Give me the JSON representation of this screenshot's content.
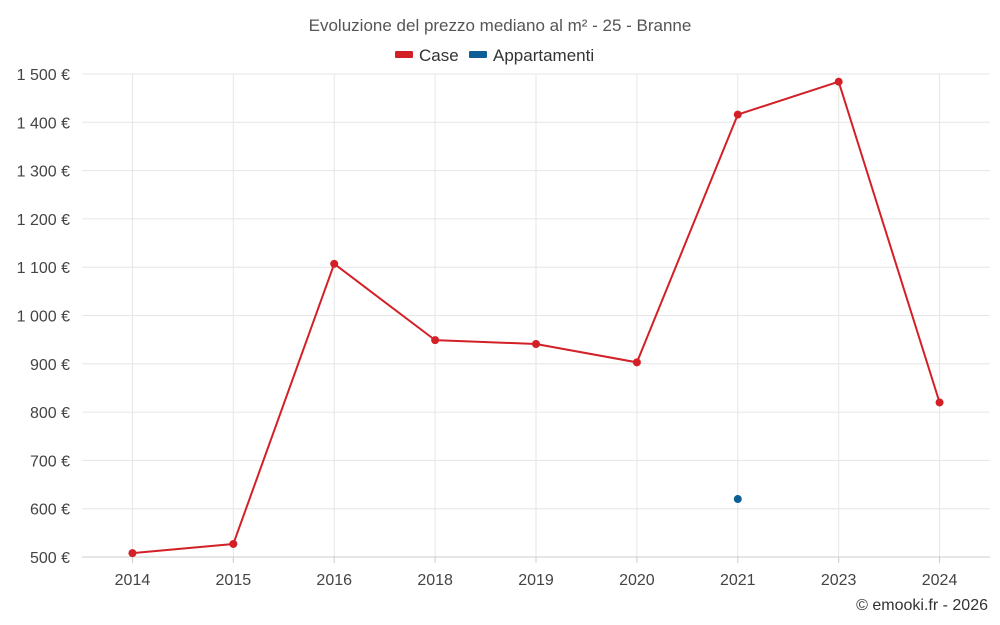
{
  "chart_data": {
    "type": "line",
    "title": "Evoluzione del prezzo mediano al m² - 25 - Branne",
    "categories": [
      "2014",
      "2015",
      "2016",
      "2018",
      "2019",
      "2020",
      "2021",
      "2023",
      "2024"
    ],
    "series": [
      {
        "name": "Case",
        "color": "#d32027",
        "values": [
          508,
          527,
          1107,
          949,
          941,
          903,
          1416,
          1484,
          820
        ]
      },
      {
        "name": "Appartamenti",
        "color": "#0b5f96",
        "values": [
          null,
          null,
          null,
          null,
          null,
          null,
          620,
          null,
          null
        ]
      }
    ],
    "yticks": [
      "500 €",
      "600 €",
      "700 €",
      "800 €",
      "900 €",
      "1 000 €",
      "1 100 €",
      "1 200 €",
      "1 300 €",
      "1 400 €",
      "1 500 €"
    ],
    "ylim": [
      500,
      1500
    ],
    "grid": true,
    "legend": "top-center",
    "credit": "© emooki.fr - 2026"
  }
}
